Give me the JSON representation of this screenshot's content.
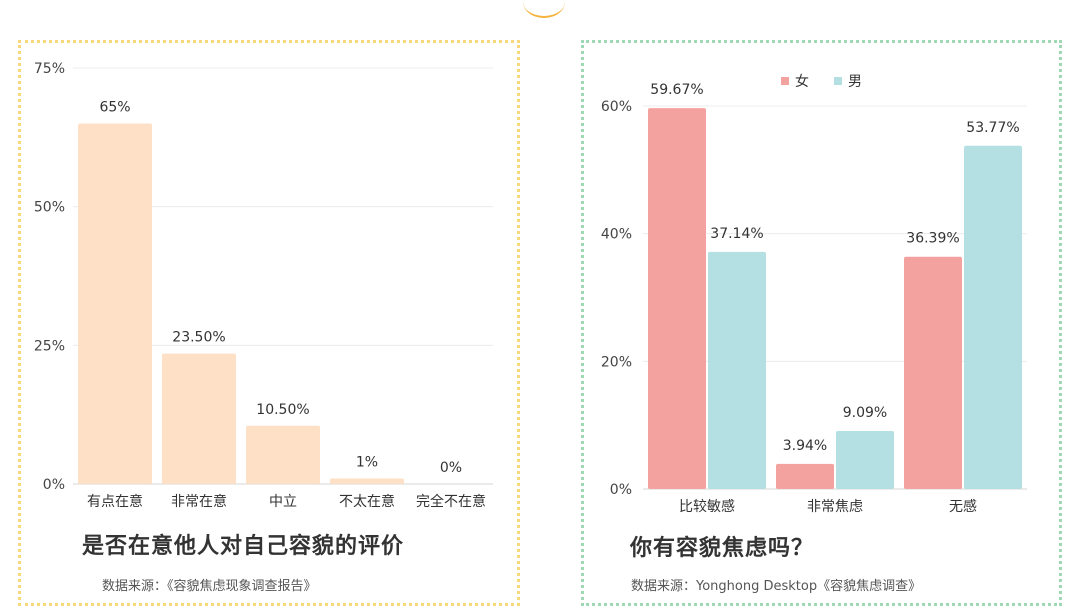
{
  "chart_data": [
    {
      "type": "bar",
      "title": "是否在意他人对自己容貌的评价",
      "source": "数据来源：《容貌焦虑现象调查报告》",
      "categories": [
        "有点在意",
        "非常在意",
        "中立",
        "不太在意",
        "完全不在意"
      ],
      "values": [
        65,
        23.5,
        10.5,
        1,
        0
      ],
      "value_labels": [
        "65%",
        "23.50%",
        "10.50%",
        "1%",
        "0%"
      ],
      "yticks": [
        0,
        25,
        50,
        75
      ],
      "ytick_labels": [
        "0%",
        "25%",
        "50%",
        "75%"
      ],
      "ylim": [
        0,
        75
      ],
      "color": "#fde0c5",
      "grid": true
    },
    {
      "type": "bar",
      "title": "你有容貌焦虑吗？",
      "source": "数据来源：Yonghong Desktop《容貌焦虑调查》",
      "categories": [
        "比较敏感",
        "非常焦虑",
        "无感"
      ],
      "series": [
        {
          "name": "女",
          "values": [
            59.67,
            3.94,
            36.39
          ],
          "labels": [
            "59.67%",
            "3.94%",
            "36.39%"
          ],
          "color": "#f4a29f"
        },
        {
          "name": "男",
          "values": [
            37.14,
            9.09,
            53.77
          ],
          "labels": [
            "37.14%",
            "9.09%",
            "53.77%"
          ],
          "color": "#b4e0e3"
        }
      ],
      "yticks": [
        0,
        20,
        40,
        60
      ],
      "ytick_labels": [
        "0%",
        "20%",
        "40%",
        "60%"
      ],
      "ylim": [
        0,
        60
      ],
      "legend": "top",
      "grid": true
    }
  ]
}
